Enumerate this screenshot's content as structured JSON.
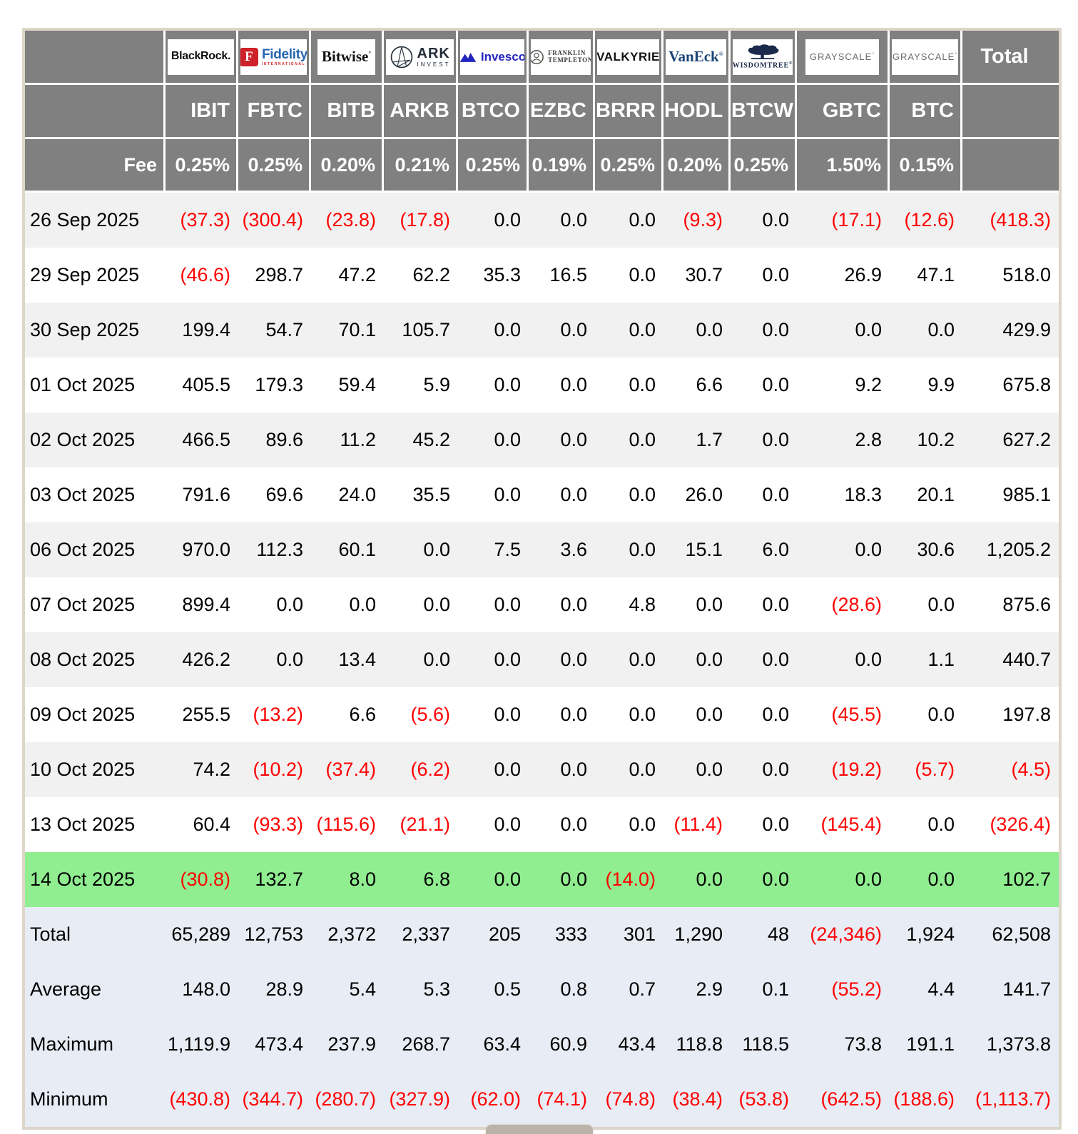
{
  "colors": {
    "header_bg": "#808080",
    "header_text": "#ffffff",
    "negative_text": "#ff0000",
    "positive_text": "#000000",
    "row_alt": "#f1f1f1",
    "row_white": "#ffffff",
    "highlight_row": "#90ee90",
    "summary_bg": "#e8ecf5",
    "table_border": "#dcd6c9",
    "fidelity_red": "#ce2129",
    "fidelity_blue": "#2766b1",
    "invesco_blue": "#2425be",
    "vaneck_navy": "#1c4577",
    "wisdomtree_navy": "#1b2a4a",
    "grayscale_gray": "#6e6e6e"
  },
  "chart_data": {
    "type": "table",
    "header": {
      "fee_label": "Fee",
      "total_label": "Total"
    },
    "columns": [
      {
        "id": "ibit",
        "issuer": "BlackRock",
        "logo_text": "BlackRock.",
        "ticker": "IBIT",
        "fee": "0.25%"
      },
      {
        "id": "fbtc",
        "issuer": "Fidelity International",
        "logo_badge": "F",
        "logo_text": "Fidelity",
        "logo_sub": "INTERNATIONAL",
        "ticker": "FBTC",
        "fee": "0.25%"
      },
      {
        "id": "bitb",
        "issuer": "Bitwise",
        "logo_text": "Bitwise",
        "ticker": "BITB",
        "fee": "0.20%"
      },
      {
        "id": "arkb",
        "issuer": "ARK Invest",
        "logo_text": "ARK",
        "logo_sub": "INVEST",
        "ticker": "ARKB",
        "fee": "0.21%"
      },
      {
        "id": "btco",
        "issuer": "Invesco",
        "logo_text": "Invesco",
        "ticker": "BTCO",
        "fee": "0.25%"
      },
      {
        "id": "ezbc",
        "issuer": "Franklin Templeton",
        "logo_text": "FRANKLIN",
        "logo_sub": "TEMPLETON",
        "ticker": "EZBC",
        "fee": "0.19%"
      },
      {
        "id": "brrr",
        "issuer": "Valkyrie",
        "logo_text": "VALKYRIE",
        "ticker": "BRRR",
        "fee": "0.25%"
      },
      {
        "id": "hodl",
        "issuer": "VanEck",
        "logo_text": "VanEck",
        "ticker": "HODL",
        "fee": "0.20%"
      },
      {
        "id": "btcw",
        "issuer": "WisdomTree",
        "logo_text": "WISDOMTREE",
        "ticker": "BTCW",
        "fee": "0.25%"
      },
      {
        "id": "gbtc",
        "issuer": "Grayscale",
        "logo_text": "GRAYSCALE",
        "ticker": "GBTC",
        "fee": "1.50%"
      },
      {
        "id": "btc",
        "issuer": "Grayscale",
        "logo_text": "GRAYSCALE",
        "ticker": "BTC",
        "fee": "0.15%"
      }
    ],
    "rows": [
      {
        "date": "26 Sep 2025",
        "values": [
          "(37.3)",
          "(300.4)",
          "(23.8)",
          "(17.8)",
          "0.0",
          "0.0",
          "0.0",
          "(9.3)",
          "0.0",
          "(17.1)",
          "(12.6)"
        ],
        "total": "(418.3)",
        "highlight": false
      },
      {
        "date": "29 Sep 2025",
        "values": [
          "(46.6)",
          "298.7",
          "47.2",
          "62.2",
          "35.3",
          "16.5",
          "0.0",
          "30.7",
          "0.0",
          "26.9",
          "47.1"
        ],
        "total": "518.0",
        "highlight": false
      },
      {
        "date": "30 Sep 2025",
        "values": [
          "199.4",
          "54.7",
          "70.1",
          "105.7",
          "0.0",
          "0.0",
          "0.0",
          "0.0",
          "0.0",
          "0.0",
          "0.0"
        ],
        "total": "429.9",
        "highlight": false
      },
      {
        "date": "01 Oct 2025",
        "values": [
          "405.5",
          "179.3",
          "59.4",
          "5.9",
          "0.0",
          "0.0",
          "0.0",
          "6.6",
          "0.0",
          "9.2",
          "9.9"
        ],
        "total": "675.8",
        "highlight": false
      },
      {
        "date": "02 Oct 2025",
        "values": [
          "466.5",
          "89.6",
          "11.2",
          "45.2",
          "0.0",
          "0.0",
          "0.0",
          "1.7",
          "0.0",
          "2.8",
          "10.2"
        ],
        "total": "627.2",
        "highlight": false
      },
      {
        "date": "03 Oct 2025",
        "values": [
          "791.6",
          "69.6",
          "24.0",
          "35.5",
          "0.0",
          "0.0",
          "0.0",
          "26.0",
          "0.0",
          "18.3",
          "20.1"
        ],
        "total": "985.1",
        "highlight": false
      },
      {
        "date": "06 Oct 2025",
        "values": [
          "970.0",
          "112.3",
          "60.1",
          "0.0",
          "7.5",
          "3.6",
          "0.0",
          "15.1",
          "6.0",
          "0.0",
          "30.6"
        ],
        "total": "1,205.2",
        "highlight": false
      },
      {
        "date": "07 Oct 2025",
        "values": [
          "899.4",
          "0.0",
          "0.0",
          "0.0",
          "0.0",
          "0.0",
          "4.8",
          "0.0",
          "0.0",
          "(28.6)",
          "0.0"
        ],
        "total": "875.6",
        "highlight": false
      },
      {
        "date": "08 Oct 2025",
        "values": [
          "426.2",
          "0.0",
          "13.4",
          "0.0",
          "0.0",
          "0.0",
          "0.0",
          "0.0",
          "0.0",
          "0.0",
          "1.1"
        ],
        "total": "440.7",
        "highlight": false
      },
      {
        "date": "09 Oct 2025",
        "values": [
          "255.5",
          "(13.2)",
          "6.6",
          "(5.6)",
          "0.0",
          "0.0",
          "0.0",
          "0.0",
          "0.0",
          "(45.5)",
          "0.0"
        ],
        "total": "197.8",
        "highlight": false
      },
      {
        "date": "10 Oct 2025",
        "values": [
          "74.2",
          "(10.2)",
          "(37.4)",
          "(6.2)",
          "0.0",
          "0.0",
          "0.0",
          "0.0",
          "0.0",
          "(19.2)",
          "(5.7)"
        ],
        "total": "(4.5)",
        "highlight": false
      },
      {
        "date": "13 Oct 2025",
        "values": [
          "60.4",
          "(93.3)",
          "(115.6)",
          "(21.1)",
          "0.0",
          "0.0",
          "0.0",
          "(11.4)",
          "0.0",
          "(145.4)",
          "0.0"
        ],
        "total": "(326.4)",
        "highlight": false
      },
      {
        "date": "14 Oct 2025",
        "values": [
          "(30.8)",
          "132.7",
          "8.0",
          "6.8",
          "0.0",
          "0.0",
          "(14.0)",
          "0.0",
          "0.0",
          "0.0",
          "0.0"
        ],
        "total": "102.7",
        "highlight": true
      }
    ],
    "summary": [
      {
        "label": "Total",
        "values": [
          "65,289",
          "12,753",
          "2,372",
          "2,337",
          "205",
          "333",
          "301",
          "1,290",
          "48",
          "(24,346)",
          "1,924"
        ],
        "total": "62,508"
      },
      {
        "label": "Average",
        "values": [
          "148.0",
          "28.9",
          "5.4",
          "5.3",
          "0.5",
          "0.8",
          "0.7",
          "2.9",
          "0.1",
          "(55.2)",
          "4.4"
        ],
        "total": "141.7"
      },
      {
        "label": "Maximum",
        "values": [
          "1,119.9",
          "473.4",
          "237.9",
          "268.7",
          "63.4",
          "60.9",
          "43.4",
          "118.8",
          "118.5",
          "73.8",
          "191.1"
        ],
        "total": "1,373.8"
      },
      {
        "label": "Minimum",
        "values": [
          "(430.8)",
          "(344.7)",
          "(280.7)",
          "(327.9)",
          "(62.0)",
          "(74.1)",
          "(74.8)",
          "(38.4)",
          "(53.8)",
          "(642.5)",
          "(188.6)"
        ],
        "total": "(1,113.7)"
      }
    ]
  }
}
